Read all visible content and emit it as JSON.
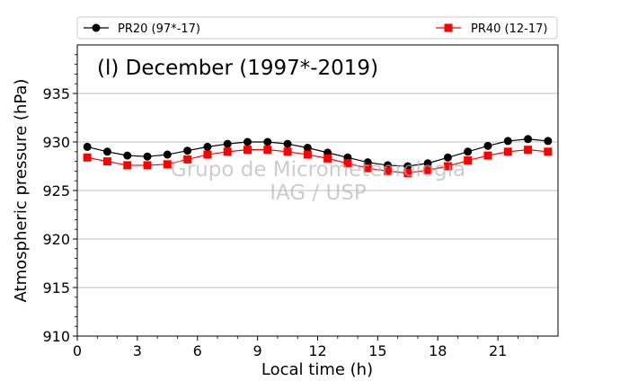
{
  "chart_data": {
    "type": "line",
    "title": "(l) December (1997*-2019)",
    "watermark_line1": "Grupo de Micrometeorologia",
    "watermark_line2": "IAG / USP",
    "xlabel": "Local time (h)",
    "ylabel": "Atmospheric pressure (hPa)",
    "xlim": [
      0,
      24
    ],
    "ylim": [
      910,
      940
    ],
    "xticks": [
      0,
      3,
      6,
      9,
      12,
      15,
      18,
      21
    ],
    "yticks": [
      910,
      915,
      920,
      925,
      930,
      935
    ],
    "grid": "horizontal",
    "legend_position": "top",
    "x": [
      0.5,
      1.5,
      2.5,
      3.5,
      4.5,
      5.5,
      6.5,
      7.5,
      8.5,
      9.5,
      10.5,
      11.5,
      12.5,
      13.5,
      14.5,
      15.5,
      16.5,
      17.5,
      18.5,
      19.5,
      20.5,
      21.5,
      22.5,
      23.5
    ],
    "series": [
      {
        "name": "PR20 (97*-17)",
        "color": "#000000",
        "marker": "circle",
        "values": [
          929.5,
          929.0,
          928.6,
          928.5,
          928.7,
          929.1,
          929.5,
          929.8,
          930.0,
          930.0,
          929.8,
          929.4,
          928.9,
          928.4,
          927.9,
          927.6,
          927.5,
          927.8,
          928.4,
          929.0,
          929.6,
          930.1,
          930.3,
          930.1
        ]
      },
      {
        "name": "PR40 (12-17)",
        "color": "#ff0000",
        "marker": "square",
        "values": [
          928.4,
          928.0,
          927.6,
          927.6,
          927.7,
          928.2,
          928.7,
          929.0,
          929.2,
          929.2,
          929.0,
          928.7,
          928.3,
          927.8,
          927.3,
          927.0,
          926.8,
          927.1,
          927.5,
          928.1,
          928.6,
          929.0,
          929.2,
          929.0
        ]
      }
    ]
  }
}
